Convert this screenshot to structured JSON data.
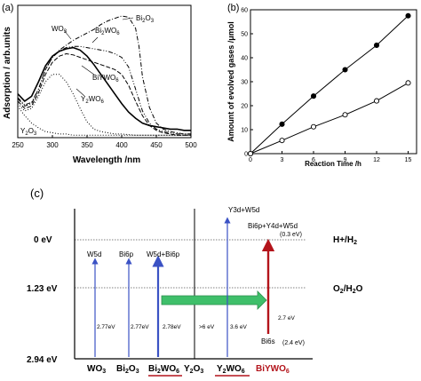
{
  "colors": {
    "blue": "#3b52c4",
    "red": "#b3141b",
    "green": "#3fbf6a",
    "green_stroke": "#2f8f4d"
  },
  "chart_data": [
    {
      "panel": "(a)",
      "type": "line",
      "xlabel": "Wavelength /nm",
      "ylabel": "Adsorption / arb.units",
      "xlim": [
        250,
        500
      ],
      "xticks": [
        250,
        300,
        350,
        400,
        450,
        500
      ],
      "grid": false,
      "series": [
        {
          "name": "WO3",
          "style": "dash",
          "x": [
            250,
            260,
            270,
            280,
            290,
            300,
            310,
            320,
            330,
            340,
            350,
            360,
            370,
            380,
            390,
            400,
            410,
            420,
            430,
            440,
            450,
            460,
            470,
            480,
            490,
            500
          ],
          "y": [
            0.3,
            0.24,
            0.26,
            0.37,
            0.52,
            0.62,
            0.67,
            0.69,
            0.68,
            0.66,
            0.64,
            0.62,
            0.6,
            0.58,
            0.56,
            0.52,
            0.43,
            0.3,
            0.18,
            0.1,
            0.06,
            0.04,
            0.03,
            0.02,
            0.02,
            0.02
          ]
        },
        {
          "name": "Bi2O3",
          "style": "dashdot",
          "x": [
            250,
            260,
            270,
            280,
            290,
            300,
            310,
            320,
            330,
            340,
            350,
            360,
            370,
            380,
            390,
            400,
            410,
            420,
            425,
            430,
            440,
            450,
            460,
            470,
            480,
            490,
            500
          ],
          "y": [
            0.32,
            0.26,
            0.28,
            0.4,
            0.56,
            0.66,
            0.72,
            0.76,
            0.8,
            0.83,
            0.86,
            0.89,
            0.93,
            0.96,
            0.98,
            1.0,
            0.99,
            0.9,
            0.75,
            0.5,
            0.25,
            0.12,
            0.07,
            0.05,
            0.04,
            0.03,
            0.03
          ]
        },
        {
          "name": "Bi2WO6",
          "style": "dashdotdot",
          "x": [
            250,
            260,
            270,
            280,
            290,
            300,
            310,
            320,
            330,
            340,
            350,
            360,
            370,
            380,
            390,
            400,
            410,
            420,
            430,
            440,
            450,
            460,
            470,
            480,
            490,
            500
          ],
          "y": [
            0.33,
            0.27,
            0.29,
            0.4,
            0.56,
            0.66,
            0.71,
            0.74,
            0.75,
            0.75,
            0.74,
            0.73,
            0.72,
            0.71,
            0.69,
            0.66,
            0.58,
            0.4,
            0.22,
            0.12,
            0.07,
            0.05,
            0.04,
            0.03,
            0.03,
            0.03
          ]
        },
        {
          "name": "BiYWO6",
          "style": "solid",
          "x": [
            250,
            260,
            270,
            280,
            290,
            300,
            310,
            320,
            330,
            340,
            350,
            360,
            370,
            380,
            390,
            400,
            410,
            420,
            430,
            440,
            450,
            460,
            470,
            480,
            490,
            500
          ],
          "y": [
            0.36,
            0.3,
            0.34,
            0.46,
            0.59,
            0.67,
            0.71,
            0.73,
            0.74,
            0.72,
            0.67,
            0.6,
            0.52,
            0.44,
            0.36,
            0.28,
            0.21,
            0.16,
            0.12,
            0.1,
            0.09,
            0.08,
            0.07,
            0.07,
            0.06,
            0.06
          ]
        },
        {
          "name": "Y2WO6",
          "style": "dot",
          "x": [
            250,
            260,
            270,
            280,
            290,
            300,
            310,
            320,
            330,
            340,
            350,
            360,
            370,
            380,
            390,
            400,
            420,
            450,
            500
          ],
          "y": [
            0.28,
            0.22,
            0.24,
            0.34,
            0.46,
            0.52,
            0.52,
            0.46,
            0.36,
            0.24,
            0.13,
            0.07,
            0.05,
            0.04,
            0.03,
            0.03,
            0.02,
            0.02,
            0.02
          ]
        },
        {
          "name": "Y2O3",
          "style": "dot",
          "x": [
            250,
            260,
            270,
            280,
            290,
            300,
            310,
            320,
            330,
            340,
            350,
            400,
            450,
            500
          ],
          "y": [
            0.26,
            0.18,
            0.12,
            0.08,
            0.05,
            0.04,
            0.03,
            0.03,
            0.02,
            0.02,
            0.02,
            0.02,
            0.02,
            0.02
          ]
        }
      ],
      "labels": [
        "WO3",
        "Bi2O3",
        "Bi2WO6",
        "BiYWO6",
        "Y2WO6",
        "Y2O3"
      ]
    },
    {
      "panel": "(b)",
      "type": "line",
      "xlabel": "Reaction Time /h",
      "ylabel": "Amount of evolved gases /μmol",
      "xlim": [
        0,
        15.8
      ],
      "ylim": [
        0,
        60
      ],
      "xticks": [
        0,
        3,
        6,
        9,
        12,
        15
      ],
      "yticks": [
        0,
        10,
        20,
        30,
        40,
        50,
        60
      ],
      "grid": false,
      "series": [
        {
          "marker": "filled",
          "x": [
            0,
            3,
            6,
            9,
            12,
            15
          ],
          "y": [
            0,
            12.3,
            24,
            35,
            45.2,
            57.5
          ]
        },
        {
          "marker": "open",
          "x": [
            0,
            3,
            6,
            9,
            12,
            15
          ],
          "y": [
            0,
            5.5,
            11.2,
            16.2,
            22,
            29.5
          ]
        }
      ]
    },
    {
      "panel": "(c)",
      "type": "diagram",
      "levels": [
        {
          "label": "0 eV",
          "ev": 0
        },
        {
          "label": "1.23 eV",
          "ev": 1.23
        },
        {
          "label": "2.94 eV",
          "ev": 2.94
        }
      ],
      "redox": [
        {
          "label": "H+/H2",
          "ev": 0
        },
        {
          "label": "O2/H2O",
          "ev": 1.23
        }
      ],
      "materials": [
        {
          "name": "WO3",
          "cb": "W5d",
          "gap": "2.77eV",
          "color": "blue"
        },
        {
          "name": "Bi2O3",
          "cb": "Bi6p",
          "gap": "2.77eV",
          "color": "blue"
        },
        {
          "name": "Bi2WO6",
          "cb": "W5d+Bi6p",
          "gap": "2.78eV",
          "color": "blue",
          "underline": true
        },
        {
          "name": "Y2O3",
          "cb": "",
          "gap": ">6 eV",
          "color": "none"
        },
        {
          "name": "Y2WO6",
          "cb": "Y3d+W5d",
          "gap": "3.6 eV",
          "color": "blue",
          "underline": true
        },
        {
          "name": "BiYWO6",
          "cb": "Bi6p+Y4d+W5d",
          "cb_offset": "(0.3 eV)",
          "vb": "Bi6s",
          "vb_offset": "(2.4 eV)",
          "gap": "2.7 eV",
          "color": "red",
          "underline": true
        }
      ]
    }
  ]
}
